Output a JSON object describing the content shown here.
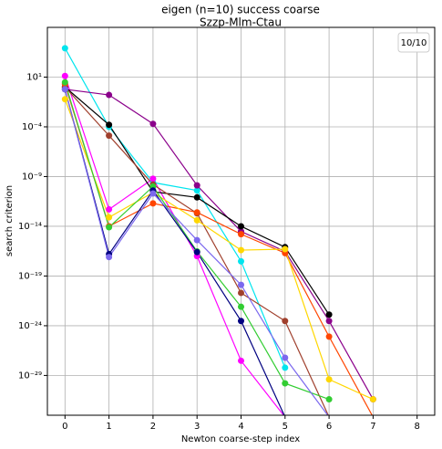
{
  "chart_data": {
    "type": "line",
    "title": "eigen (n=10) success coarse",
    "subtitle": "Szzp-Mlm-Ctau",
    "annotation": "10/10",
    "x_label": "Newton coarse-step index",
    "y_label": "search criterion",
    "log_y": true,
    "grid": true,
    "x": [
      0,
      1,
      2,
      3,
      4,
      5,
      6,
      7
    ],
    "xlim": [
      -0.4,
      8.4
    ],
    "xticks": [
      0,
      1,
      2,
      3,
      4,
      5,
      6,
      7,
      8
    ],
    "ylim": [
      1e-33,
      1000000.0
    ],
    "yticks": [
      {
        "value": 10,
        "label": "10¹"
      },
      {
        "value": 0.0001,
        "label": "10⁻⁴"
      },
      {
        "value": 1e-09,
        "label": "10⁻⁹"
      },
      {
        "value": 1e-14,
        "label": "10⁻¹⁴"
      },
      {
        "value": 1e-19,
        "label": "10⁻¹⁹"
      },
      {
        "value": 1e-24,
        "label": "10⁻²⁴"
      },
      {
        "value": 1e-29,
        "label": "10⁻²⁹"
      }
    ],
    "series": [
      {
        "name": "cyan",
        "color": "#00e5ee",
        "values": [
          8000.0,
          0.0001,
          2.5e-10,
          4e-11,
          3e-18,
          6e-29,
          null,
          null
        ]
      },
      {
        "name": "magenta",
        "color": "#ff00ff",
        "values": [
          13,
          5e-13,
          6e-10,
          1e-17,
          3e-28,
          0,
          null,
          null
        ]
      },
      {
        "name": "purple",
        "color": "#8b008b",
        "values": [
          0.6,
          0.16,
          0.0002,
          1.3e-10,
          3e-15,
          3e-17,
          3e-24,
          4e-32
        ]
      },
      {
        "name": "black",
        "color": "#000000",
        "values": [
          1,
          0.00016,
          3e-11,
          8e-12,
          1e-14,
          8e-17,
          1.3e-23,
          null
        ]
      },
      {
        "name": "brown",
        "color": "#a0402d",
        "values": [
          1,
          1.3e-05,
          1.6e-10,
          2e-13,
          2e-21,
          3e-24,
          0,
          null
        ]
      },
      {
        "name": "orangered",
        "color": "#ff4500",
        "values": [
          2,
          1e-14,
          2e-12,
          2.5e-13,
          1.6e-15,
          2e-17,
          8e-26,
          0
        ]
      },
      {
        "name": "gold",
        "color": "#ffd700",
        "values": [
          0.06,
          8e-14,
          2.5e-11,
          4e-14,
          4e-17,
          5e-17,
          4e-30,
          4e-32
        ]
      },
      {
        "name": "green",
        "color": "#32cd32",
        "values": [
          3,
          8e-15,
          1e-10,
          3e-17,
          8e-23,
          1.6e-30,
          4e-32,
          null
        ]
      },
      {
        "name": "navy",
        "color": "#000080",
        "values": [
          0.6,
          1.6e-17,
          4e-11,
          2.5e-17,
          3e-24,
          0,
          null,
          null
        ]
      },
      {
        "name": "slateblue",
        "color": "#7b68ee",
        "values": [
          0.6,
          8e-18,
          2e-11,
          4e-16,
          1.3e-20,
          6e-28,
          0,
          null
        ]
      }
    ]
  }
}
